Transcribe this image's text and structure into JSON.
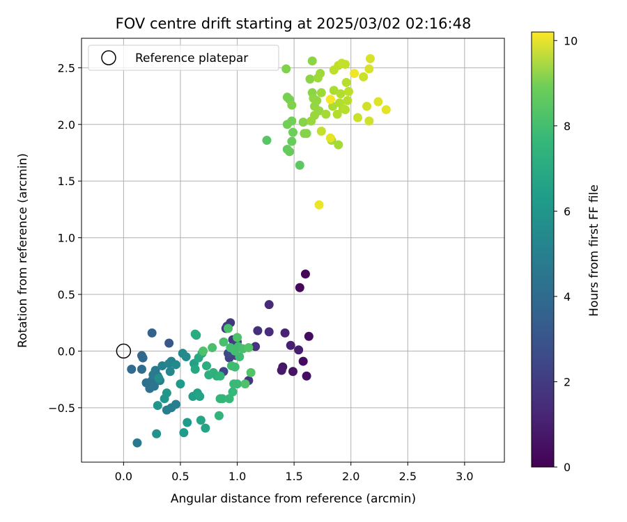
{
  "chart_data": {
    "type": "scatter",
    "title": "FOV centre drift starting at 2025/03/02 02:16:48",
    "xlabel": "Angular distance from reference (arcmin)",
    "ylabel": "Rotation from reference (arcmin)",
    "xlim": [
      -0.37,
      3.35
    ],
    "ylim": [
      -0.98,
      2.76
    ],
    "xticks": [
      0.0,
      0.5,
      1.0,
      1.5,
      2.0,
      2.5,
      3.0
    ],
    "xtick_labels": [
      "0.0",
      "0.5",
      "1.0",
      "1.5",
      "2.0",
      "2.5",
      "3.0"
    ],
    "yticks": [
      -0.5,
      0.0,
      0.5,
      1.0,
      1.5,
      2.0,
      2.5
    ],
    "ytick_labels": [
      "−0.5",
      "0.0",
      "0.5",
      "1.0",
      "1.5",
      "2.0",
      "2.5"
    ],
    "grid": true,
    "legend": {
      "location": "upper-left",
      "entries": [
        {
          "label": "Reference platepar",
          "marker": "open-circle"
        }
      ]
    },
    "reference_point": {
      "x": 0.0,
      "y": 0.0
    },
    "colorbar": {
      "label": "Hours from first FF file",
      "colormap": "viridis",
      "min": 0,
      "max": 10.2,
      "ticks": [
        0,
        2,
        4,
        6,
        8,
        10
      ],
      "tick_labels": [
        "0",
        "2",
        "4",
        "6",
        "8",
        "10"
      ]
    },
    "series": [
      {
        "points": [
          {
            "x": 1.6,
            "y": 0.68,
            "c": 0.1
          },
          {
            "x": 1.55,
            "y": 0.56,
            "c": 0.2
          },
          {
            "x": 1.63,
            "y": 0.13,
            "c": 0.3
          },
          {
            "x": 1.58,
            "y": -0.09,
            "c": 0.3
          },
          {
            "x": 1.61,
            "y": -0.22,
            "c": 0.4
          },
          {
            "x": 1.49,
            "y": -0.18,
            "c": 0.5
          },
          {
            "x": 1.4,
            "y": -0.14,
            "c": 0.6
          },
          {
            "x": 1.39,
            "y": -0.17,
            "c": 0.7
          },
          {
            "x": 1.54,
            "y": 0.01,
            "c": 0.8
          },
          {
            "x": 1.47,
            "y": 0.05,
            "c": 0.9
          },
          {
            "x": 1.42,
            "y": 0.16,
            "c": 1.0
          },
          {
            "x": 1.28,
            "y": 0.41,
            "c": 1.2
          },
          {
            "x": 1.28,
            "y": 0.17,
            "c": 1.3
          },
          {
            "x": 1.18,
            "y": 0.18,
            "c": 1.4
          },
          {
            "x": 1.16,
            "y": 0.04,
            "c": 1.5
          },
          {
            "x": 1.1,
            "y": -0.26,
            "c": 1.6
          },
          {
            "x": 0.94,
            "y": 0.25,
            "c": 1.6
          },
          {
            "x": 0.91,
            "y": 0.22,
            "c": 1.7
          },
          {
            "x": 0.96,
            "y": 0.1,
            "c": 1.7
          },
          {
            "x": 0.9,
            "y": 0.2,
            "c": 1.8
          },
          {
            "x": 1.0,
            "y": 0.08,
            "c": 1.9
          },
          {
            "x": 0.99,
            "y": -0.04,
            "c": 1.9
          },
          {
            "x": 0.93,
            "y": -0.06,
            "c": 2.0
          },
          {
            "x": 0.88,
            "y": -0.18,
            "c": 2.1
          },
          {
            "x": 0.92,
            "y": -0.02,
            "c": 2.2
          },
          {
            "x": 0.4,
            "y": 0.07,
            "c": 2.8
          },
          {
            "x": 0.25,
            "y": 0.16,
            "c": 3.2
          },
          {
            "x": 0.16,
            "y": -0.04,
            "c": 3.4
          },
          {
            "x": 0.17,
            "y": -0.06,
            "c": 3.4
          },
          {
            "x": 0.07,
            "y": -0.16,
            "c": 3.5
          },
          {
            "x": 0.16,
            "y": -0.16,
            "c": 3.6
          },
          {
            "x": 0.2,
            "y": -0.28,
            "c": 3.7
          },
          {
            "x": 0.23,
            "y": -0.33,
            "c": 3.8
          },
          {
            "x": 0.25,
            "y": -0.26,
            "c": 3.9
          },
          {
            "x": 0.27,
            "y": -0.31,
            "c": 4.0
          },
          {
            "x": 0.3,
            "y": -0.22,
            "c": 4.1
          },
          {
            "x": 0.28,
            "y": -0.17,
            "c": 4.2
          },
          {
            "x": 0.26,
            "y": -0.21,
            "c": 4.2
          },
          {
            "x": 0.32,
            "y": -0.26,
            "c": 4.3
          },
          {
            "x": 0.38,
            "y": -0.52,
            "c": 4.3
          },
          {
            "x": 0.42,
            "y": -0.5,
            "c": 4.4
          },
          {
            "x": 0.46,
            "y": -0.47,
            "c": 4.4
          },
          {
            "x": 0.34,
            "y": -0.13,
            "c": 4.5
          },
          {
            "x": 0.42,
            "y": -0.09,
            "c": 4.5
          },
          {
            "x": 0.4,
            "y": -0.11,
            "c": 4.6
          },
          {
            "x": 0.41,
            "y": -0.18,
            "c": 4.7
          },
          {
            "x": 0.46,
            "y": -0.12,
            "c": 4.8
          },
          {
            "x": 0.52,
            "y": -0.02,
            "c": 4.8
          },
          {
            "x": 0.55,
            "y": -0.05,
            "c": 4.9
          },
          {
            "x": 0.31,
            "y": -0.24,
            "c": 5.0
          },
          {
            "x": 0.12,
            "y": -0.81,
            "c": 4.1
          },
          {
            "x": 0.29,
            "y": -0.73,
            "c": 5.2
          },
          {
            "x": 0.3,
            "y": -0.48,
            "c": 5.3
          },
          {
            "x": 0.36,
            "y": -0.42,
            "c": 5.3
          },
          {
            "x": 0.38,
            "y": -0.37,
            "c": 5.4
          },
          {
            "x": 0.5,
            "y": -0.29,
            "c": 5.5
          },
          {
            "x": 0.53,
            "y": -0.72,
            "c": 5.5
          },
          {
            "x": 0.56,
            "y": -0.63,
            "c": 5.6
          },
          {
            "x": 0.61,
            "y": -0.4,
            "c": 5.7
          },
          {
            "x": 0.65,
            "y": -0.37,
            "c": 5.8
          },
          {
            "x": 0.67,
            "y": -0.4,
            "c": 5.9
          },
          {
            "x": 0.68,
            "y": -0.61,
            "c": 6.0
          },
          {
            "x": 0.72,
            "y": -0.68,
            "c": 6.0
          },
          {
            "x": 0.62,
            "y": -0.11,
            "c": 5.8
          },
          {
            "x": 0.63,
            "y": -0.16,
            "c": 6.1
          },
          {
            "x": 0.66,
            "y": -0.06,
            "c": 6.1
          },
          {
            "x": 0.64,
            "y": 0.14,
            "c": 6.2
          },
          {
            "x": 0.63,
            "y": 0.15,
            "c": 6.3
          },
          {
            "x": 0.69,
            "y": -0.02,
            "c": 6.3
          },
          {
            "x": 0.73,
            "y": -0.13,
            "c": 6.4
          },
          {
            "x": 0.75,
            "y": -0.21,
            "c": 6.4
          },
          {
            "x": 0.79,
            "y": -0.19,
            "c": 6.5
          },
          {
            "x": 0.82,
            "y": -0.22,
            "c": 6.5
          },
          {
            "x": 0.85,
            "y": -0.22,
            "c": 6.6
          },
          {
            "x": 0.84,
            "y": -0.57,
            "c": 6.6
          },
          {
            "x": 0.85,
            "y": -0.42,
            "c": 6.7
          },
          {
            "x": 0.87,
            "y": -0.42,
            "c": 6.7
          },
          {
            "x": 0.93,
            "y": -0.42,
            "c": 6.8
          },
          {
            "x": 0.96,
            "y": -0.36,
            "c": 6.8
          },
          {
            "x": 0.97,
            "y": -0.29,
            "c": 6.9
          },
          {
            "x": 1.0,
            "y": -0.29,
            "c": 6.9
          },
          {
            "x": 0.95,
            "y": -0.13,
            "c": 7.0
          },
          {
            "x": 0.98,
            "y": -0.14,
            "c": 7.0
          },
          {
            "x": 1.02,
            "y": -0.05,
            "c": 7.0
          },
          {
            "x": 0.94,
            "y": 0.03,
            "c": 7.1
          },
          {
            "x": 0.98,
            "y": 0.0,
            "c": 7.1
          },
          {
            "x": 1.01,
            "y": 0.04,
            "c": 7.1
          },
          {
            "x": 1.05,
            "y": 0.02,
            "c": 7.2
          },
          {
            "x": 0.88,
            "y": 0.08,
            "c": 7.2
          },
          {
            "x": 0.92,
            "y": 0.2,
            "c": 7.2
          },
          {
            "x": 0.78,
            "y": 0.03,
            "c": 7.2
          },
          {
            "x": 0.7,
            "y": 0.0,
            "c": 7.3
          },
          {
            "x": 1.0,
            "y": 0.12,
            "c": 7.3
          },
          {
            "x": 1.07,
            "y": -0.29,
            "c": 7.3
          },
          {
            "x": 1.12,
            "y": -0.19,
            "c": 7.4
          },
          {
            "x": 1.1,
            "y": 0.03,
            "c": 7.4
          },
          {
            "x": 1.26,
            "y": 1.86,
            "c": 7.5
          },
          {
            "x": 1.55,
            "y": 1.64,
            "c": 7.6
          },
          {
            "x": 1.44,
            "y": 1.78,
            "c": 7.7
          },
          {
            "x": 1.46,
            "y": 1.76,
            "c": 7.8
          },
          {
            "x": 1.48,
            "y": 1.85,
            "c": 7.8
          },
          {
            "x": 1.49,
            "y": 1.93,
            "c": 7.9
          },
          {
            "x": 1.44,
            "y": 2.0,
            "c": 8.0
          },
          {
            "x": 1.48,
            "y": 2.03,
            "c": 8.0
          },
          {
            "x": 1.44,
            "y": 2.24,
            "c": 8.1
          },
          {
            "x": 1.46,
            "y": 2.22,
            "c": 8.1
          },
          {
            "x": 1.48,
            "y": 2.17,
            "c": 8.2
          },
          {
            "x": 1.43,
            "y": 2.49,
            "c": 8.2
          },
          {
            "x": 1.59,
            "y": 1.92,
            "c": 8.3
          },
          {
            "x": 1.58,
            "y": 2.02,
            "c": 8.3
          },
          {
            "x": 1.61,
            "y": 1.92,
            "c": 8.3
          },
          {
            "x": 1.64,
            "y": 2.4,
            "c": 8.4
          },
          {
            "x": 1.66,
            "y": 2.56,
            "c": 8.4
          },
          {
            "x": 1.66,
            "y": 2.28,
            "c": 8.4
          },
          {
            "x": 1.67,
            "y": 2.23,
            "c": 8.5
          },
          {
            "x": 1.68,
            "y": 2.16,
            "c": 8.5
          },
          {
            "x": 1.7,
            "y": 2.21,
            "c": 8.5
          },
          {
            "x": 1.72,
            "y": 2.12,
            "c": 8.6
          },
          {
            "x": 1.65,
            "y": 2.03,
            "c": 8.6
          },
          {
            "x": 1.68,
            "y": 2.08,
            "c": 8.6
          },
          {
            "x": 1.71,
            "y": 2.41,
            "c": 8.7
          },
          {
            "x": 1.73,
            "y": 2.45,
            "c": 8.7
          },
          {
            "x": 1.74,
            "y": 2.28,
            "c": 8.7
          },
          {
            "x": 1.78,
            "y": 2.09,
            "c": 8.8
          },
          {
            "x": 1.83,
            "y": 1.86,
            "c": 8.8
          },
          {
            "x": 1.89,
            "y": 1.82,
            "c": 8.8
          },
          {
            "x": 1.82,
            "y": 2.22,
            "c": 8.9
          },
          {
            "x": 1.84,
            "y": 2.16,
            "c": 8.9
          },
          {
            "x": 1.85,
            "y": 2.3,
            "c": 8.9
          },
          {
            "x": 1.88,
            "y": 2.09,
            "c": 9.0
          },
          {
            "x": 1.9,
            "y": 2.19,
            "c": 9.0
          },
          {
            "x": 1.91,
            "y": 2.27,
            "c": 9.0
          },
          {
            "x": 1.93,
            "y": 2.14,
            "c": 9.0
          },
          {
            "x": 1.95,
            "y": 2.13,
            "c": 9.1
          },
          {
            "x": 1.97,
            "y": 2.21,
            "c": 9.1
          },
          {
            "x": 1.96,
            "y": 2.37,
            "c": 9.1
          },
          {
            "x": 1.98,
            "y": 2.29,
            "c": 9.2
          },
          {
            "x": 1.85,
            "y": 2.48,
            "c": 9.2
          },
          {
            "x": 1.89,
            "y": 2.52,
            "c": 9.2
          },
          {
            "x": 1.92,
            "y": 2.54,
            "c": 9.3
          },
          {
            "x": 1.95,
            "y": 2.53,
            "c": 9.3
          },
          {
            "x": 1.74,
            "y": 1.94,
            "c": 9.3
          },
          {
            "x": 2.06,
            "y": 2.06,
            "c": 9.4
          },
          {
            "x": 2.11,
            "y": 2.42,
            "c": 9.4
          },
          {
            "x": 2.14,
            "y": 2.16,
            "c": 9.5
          },
          {
            "x": 2.16,
            "y": 2.03,
            "c": 9.5
          },
          {
            "x": 2.16,
            "y": 2.49,
            "c": 9.6
          },
          {
            "x": 2.17,
            "y": 2.58,
            "c": 9.6
          },
          {
            "x": 2.24,
            "y": 2.2,
            "c": 9.7
          },
          {
            "x": 2.31,
            "y": 2.13,
            "c": 9.8
          },
          {
            "x": 1.82,
            "y": 1.88,
            "c": 9.8
          },
          {
            "x": 1.72,
            "y": 1.29,
            "c": 9.9
          },
          {
            "x": 2.03,
            "y": 2.45,
            "c": 10.0
          },
          {
            "x": 1.82,
            "y": 2.22,
            "c": 10.1
          }
        ]
      }
    ]
  }
}
